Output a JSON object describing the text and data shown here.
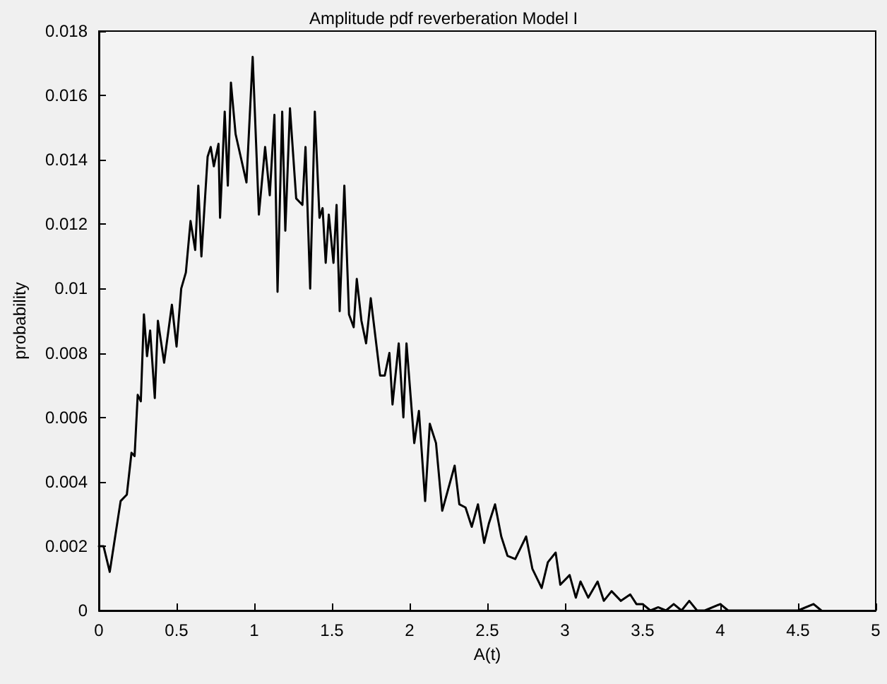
{
  "chart_data": {
    "type": "line",
    "title": "Amplitude pdf reverberation Model I",
    "xlabel": "A(t)",
    "ylabel": "probability",
    "color": "#000000",
    "marker": "none",
    "line_style": "solid",
    "grid": false,
    "x": [
      0,
      0.03,
      0.07,
      0.14,
      0.18,
      0.21,
      0.23,
      0.25,
      0.27,
      0.29,
      0.31,
      0.33,
      0.36,
      0.38,
      0.42,
      0.47,
      0.5,
      0.53,
      0.56,
      0.59,
      0.62,
      0.64,
      0.66,
      0.7,
      0.72,
      0.74,
      0.77,
      0.78,
      0.81,
      0.83,
      0.85,
      0.88,
      0.95,
      0.99,
      1.03,
      1.07,
      1.1,
      1.13,
      1.15,
      1.18,
      1.2,
      1.23,
      1.27,
      1.31,
      1.33,
      1.36,
      1.39,
      1.42,
      1.44,
      1.46,
      1.48,
      1.51,
      1.53,
      1.55,
      1.58,
      1.61,
      1.64,
      1.66,
      1.69,
      1.72,
      1.75,
      1.81,
      1.84,
      1.87,
      1.89,
      1.93,
      1.96,
      1.98,
      2.03,
      2.06,
      2.1,
      2.13,
      2.17,
      2.21,
      2.29,
      2.32,
      2.36,
      2.4,
      2.44,
      2.48,
      2.51,
      2.55,
      2.59,
      2.63,
      2.68,
      2.75,
      2.79,
      2.85,
      2.89,
      2.94,
      2.97,
      3.03,
      3.07,
      3.1,
      3.15,
      3.21,
      3.25,
      3.3,
      3.36,
      3.42,
      3.46,
      3.5,
      3.55,
      3.6,
      3.65,
      3.7,
      3.75,
      3.8,
      3.85,
      3.9,
      4.0,
      4.05,
      4.5,
      4.6,
      4.65
    ],
    "values": [
      0.002,
      0.002,
      0.0012,
      0.0034,
      0.0036,
      0.0049,
      0.0048,
      0.0067,
      0.0065,
      0.0092,
      0.0079,
      0.0087,
      0.0066,
      0.009,
      0.0077,
      0.0095,
      0.0082,
      0.01,
      0.0105,
      0.0121,
      0.0112,
      0.0132,
      0.011,
      0.0141,
      0.0144,
      0.0138,
      0.0145,
      0.0122,
      0.0155,
      0.0132,
      0.0164,
      0.0148,
      0.0133,
      0.0172,
      0.0123,
      0.0144,
      0.0129,
      0.0154,
      0.0099,
      0.0155,
      0.0118,
      0.0156,
      0.0128,
      0.0126,
      0.0144,
      0.01,
      0.0155,
      0.0122,
      0.0125,
      0.0108,
      0.0123,
      0.0108,
      0.0126,
      0.0093,
      0.0132,
      0.0092,
      0.0088,
      0.0103,
      0.009,
      0.0083,
      0.0097,
      0.0073,
      0.0073,
      0.008,
      0.0064,
      0.0083,
      0.006,
      0.0083,
      0.0052,
      0.0062,
      0.0034,
      0.0058,
      0.0052,
      0.0031,
      0.0045,
      0.0033,
      0.0032,
      0.0026,
      0.0033,
      0.0021,
      0.0027,
      0.0033,
      0.0023,
      0.0017,
      0.0016,
      0.0023,
      0.0013,
      0.0007,
      0.0015,
      0.0018,
      0.0008,
      0.0011,
      0.0004,
      0.0009,
      0.0004,
      0.0009,
      0.0003,
      0.0006,
      0.0003,
      0.0005,
      0.0002,
      0.0002,
      0,
      0.0001,
      0,
      0.0002,
      0,
      0.0003,
      0,
      0,
      0.0002,
      0,
      0,
      0.0002,
      0
    ],
    "xlim": [
      0,
      5
    ],
    "xticks": [
      0,
      0.5,
      1,
      1.5,
      2,
      2.5,
      3,
      3.5,
      4,
      4.5,
      5
    ],
    "ylim": [
      0,
      0.018
    ],
    "yticks": [
      0,
      0.002,
      0.004,
      0.006,
      0.008,
      0.01,
      0.012,
      0.014,
      0.016,
      0.018
    ]
  }
}
